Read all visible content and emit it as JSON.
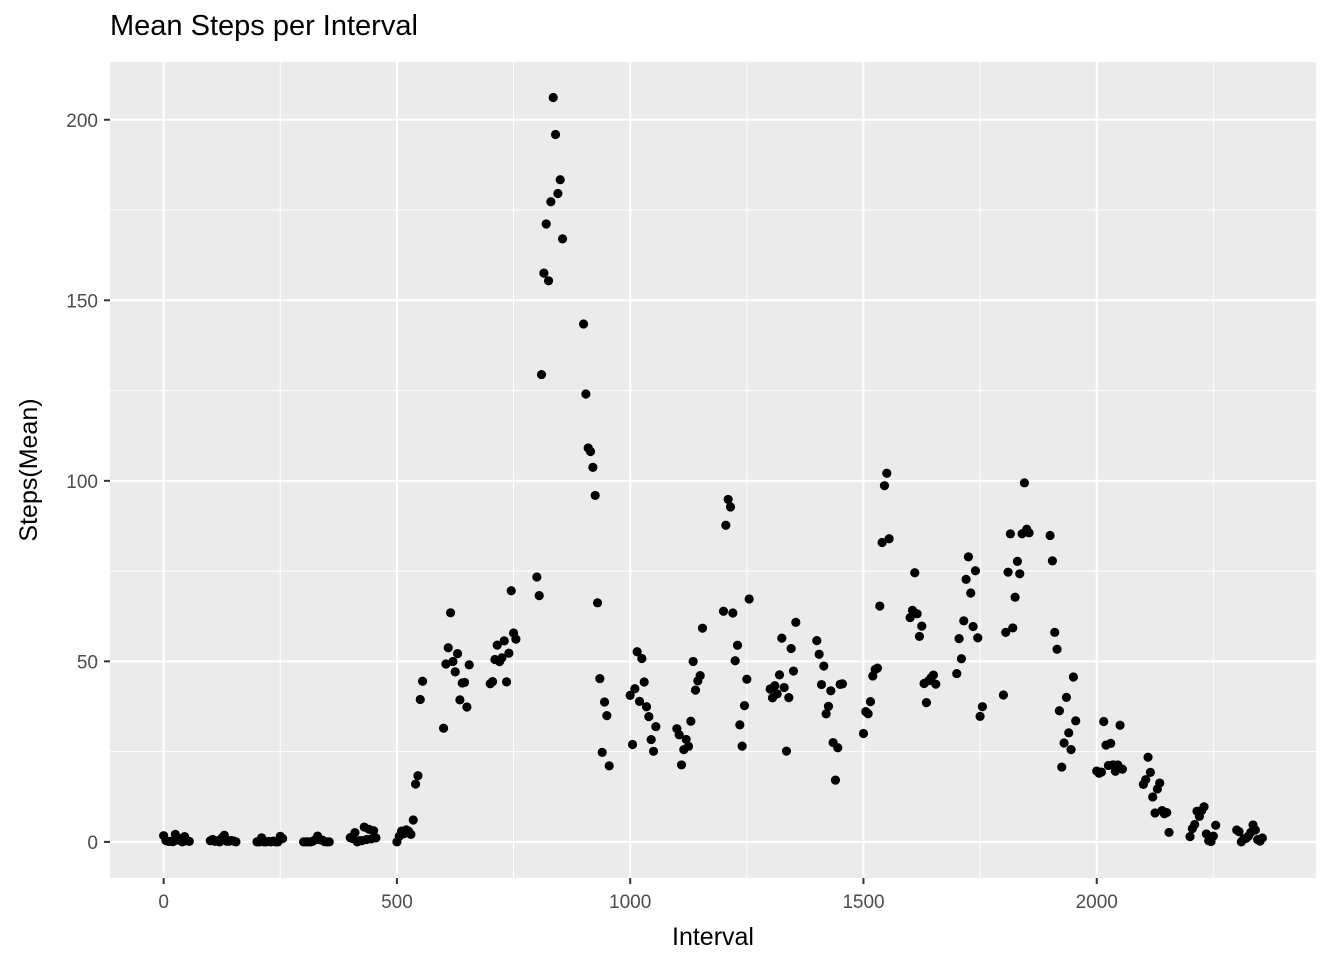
{
  "chart_data": {
    "type": "scatter",
    "title": "Mean Steps per Interval",
    "xlabel": "Interval",
    "ylabel": "Steps(Mean)",
    "xlim": [
      -115,
      2470
    ],
    "ylim": [
      -10,
      216
    ],
    "x_ticks": [
      0,
      500,
      1000,
      1500,
      2000
    ],
    "y_ticks": [
      0,
      50,
      100,
      150,
      200
    ],
    "x_tick_labels": [
      "0",
      "500",
      "1000",
      "1500",
      "2000"
    ],
    "y_tick_labels": [
      "0",
      "50",
      "100",
      "150",
      "200"
    ],
    "grid": true,
    "colors": {
      "panel": "#ebebeb",
      "grid": "#ffffff",
      "point": "#000000"
    },
    "points": [
      [
        0,
        1.72
      ],
      [
        5,
        0.34
      ],
      [
        10,
        0.13
      ],
      [
        15,
        0.15
      ],
      [
        20,
        0.08
      ],
      [
        25,
        2.09
      ],
      [
        30,
        0.53
      ],
      [
        35,
        0.87
      ],
      [
        40,
        0
      ],
      [
        45,
        1.47
      ],
      [
        50,
        0.3
      ],
      [
        55,
        0.13
      ],
      [
        100,
        0.32
      ],
      [
        105,
        0.68
      ],
      [
        110,
        0.15
      ],
      [
        115,
        0.34
      ],
      [
        120,
        0
      ],
      [
        125,
        1.11
      ],
      [
        130,
        1.83
      ],
      [
        135,
        0.17
      ],
      [
        140,
        0.17
      ],
      [
        145,
        0.38
      ],
      [
        150,
        0.26
      ],
      [
        155,
        0
      ],
      [
        200,
        0
      ],
      [
        205,
        0
      ],
      [
        210,
        1.13
      ],
      [
        215,
        0
      ],
      [
        220,
        0
      ],
      [
        225,
        0.13
      ],
      [
        230,
        0
      ],
      [
        235,
        0.23
      ],
      [
        240,
        0
      ],
      [
        245,
        0
      ],
      [
        250,
        1.55
      ],
      [
        255,
        0.94
      ],
      [
        300,
        0
      ],
      [
        305,
        0
      ],
      [
        310,
        0
      ],
      [
        315,
        0
      ],
      [
        320,
        0.21
      ],
      [
        325,
        0.62
      ],
      [
        330,
        1.62
      ],
      [
        335,
        0.59
      ],
      [
        340,
        0.49
      ],
      [
        345,
        0.08
      ],
      [
        350,
        0
      ],
      [
        355,
        0
      ],
      [
        400,
        1.19
      ],
      [
        405,
        0.94
      ],
      [
        410,
        2.57
      ],
      [
        415,
        0
      ],
      [
        420,
        0.34
      ],
      [
        425,
        0.36
      ],
      [
        430,
        4.11
      ],
      [
        435,
        0.66
      ],
      [
        440,
        3.49
      ],
      [
        445,
        0.83
      ],
      [
        450,
        3.11
      ],
      [
        455,
        1.11
      ],
      [
        500,
        0
      ],
      [
        505,
        1.57
      ],
      [
        510,
        3.0
      ],
      [
        515,
        2.25
      ],
      [
        520,
        3.32
      ],
      [
        525,
        2.96
      ],
      [
        530,
        2.09
      ],
      [
        535,
        6.06
      ],
      [
        540,
        16.02
      ],
      [
        545,
        18.34
      ],
      [
        550,
        39.45
      ],
      [
        555,
        44.49
      ],
      [
        600,
        31.49
      ],
      [
        605,
        49.26
      ],
      [
        610,
        53.77
      ],
      [
        615,
        63.45
      ],
      [
        620,
        49.96
      ],
      [
        625,
        47.08
      ],
      [
        630,
        52.15
      ],
      [
        635,
        39.34
      ],
      [
        640,
        44.02
      ],
      [
        645,
        44.17
      ],
      [
        650,
        37.36
      ],
      [
        655,
        49.04
      ],
      [
        700,
        43.81
      ],
      [
        705,
        44.38
      ],
      [
        710,
        50.51
      ],
      [
        715,
        54.51
      ],
      [
        720,
        49.92
      ],
      [
        725,
        50.98
      ],
      [
        730,
        55.68
      ],
      [
        735,
        44.32
      ],
      [
        740,
        52.26
      ],
      [
        745,
        69.55
      ],
      [
        750,
        57.85
      ],
      [
        755,
        56.15
      ],
      [
        800,
        73.38
      ],
      [
        805,
        68.21
      ],
      [
        810,
        129.43
      ],
      [
        815,
        157.53
      ],
      [
        820,
        171.15
      ],
      [
        825,
        155.4
      ],
      [
        830,
        177.3
      ],
      [
        835,
        206.17
      ],
      [
        840,
        195.92
      ],
      [
        845,
        179.57
      ],
      [
        850,
        183.4
      ],
      [
        855,
        167.02
      ],
      [
        900,
        143.45
      ],
      [
        905,
        124.04
      ],
      [
        910,
        109.11
      ],
      [
        915,
        108.11
      ],
      [
        920,
        103.72
      ],
      [
        925,
        95.96
      ],
      [
        930,
        66.21
      ],
      [
        935,
        45.23
      ],
      [
        940,
        24.79
      ],
      [
        945,
        38.75
      ],
      [
        950,
        34.98
      ],
      [
        955,
        21.06
      ],
      [
        1000,
        40.57
      ],
      [
        1005,
        26.98
      ],
      [
        1010,
        42.42
      ],
      [
        1015,
        52.66
      ],
      [
        1020,
        38.92
      ],
      [
        1025,
        50.79
      ],
      [
        1030,
        44.28
      ],
      [
        1035,
        37.42
      ],
      [
        1040,
        34.7
      ],
      [
        1045,
        28.34
      ],
      [
        1050,
        25.09
      ],
      [
        1055,
        31.94
      ],
      [
        1100,
        31.36
      ],
      [
        1105,
        29.68
      ],
      [
        1110,
        21.32
      ],
      [
        1115,
        25.55
      ],
      [
        1120,
        28.38
      ],
      [
        1125,
        26.47
      ],
      [
        1130,
        33.43
      ],
      [
        1135,
        49.98
      ],
      [
        1140,
        42.04
      ],
      [
        1145,
        44.6
      ],
      [
        1150,
        46.04
      ],
      [
        1155,
        59.19
      ],
      [
        1200,
        63.87
      ],
      [
        1205,
        87.7
      ],
      [
        1210,
        94.85
      ],
      [
        1215,
        92.77
      ],
      [
        1220,
        63.4
      ],
      [
        1225,
        50.17
      ],
      [
        1230,
        54.47
      ],
      [
        1235,
        32.42
      ],
      [
        1240,
        26.53
      ],
      [
        1245,
        37.74
      ],
      [
        1250,
        45.06
      ],
      [
        1255,
        67.28
      ],
      [
        1300,
        42.34
      ],
      [
        1305,
        39.89
      ],
      [
        1310,
        43.26
      ],
      [
        1315,
        40.98
      ],
      [
        1320,
        46.25
      ],
      [
        1325,
        56.43
      ],
      [
        1330,
        42.75
      ],
      [
        1335,
        25.13
      ],
      [
        1340,
        39.96
      ],
      [
        1345,
        53.55
      ],
      [
        1350,
        47.32
      ],
      [
        1355,
        60.81
      ],
      [
        1400,
        55.75
      ],
      [
        1405,
        51.96
      ],
      [
        1410,
        43.58
      ],
      [
        1415,
        48.7
      ],
      [
        1420,
        35.47
      ],
      [
        1425,
        37.55
      ],
      [
        1430,
        41.85
      ],
      [
        1435,
        27.51
      ],
      [
        1440,
        17.11
      ],
      [
        1445,
        26.08
      ],
      [
        1450,
        43.62
      ],
      [
        1455,
        43.77
      ],
      [
        1500,
        30.02
      ],
      [
        1505,
        36.08
      ],
      [
        1510,
        35.49
      ],
      [
        1515,
        38.85
      ],
      [
        1520,
        45.96
      ],
      [
        1525,
        47.75
      ],
      [
        1530,
        48.13
      ],
      [
        1535,
        65.32
      ],
      [
        1540,
        82.91
      ],
      [
        1545,
        98.66
      ],
      [
        1550,
        102.11
      ],
      [
        1555,
        83.96
      ],
      [
        1600,
        62.13
      ],
      [
        1605,
        64.13
      ],
      [
        1610,
        74.55
      ],
      [
        1615,
        63.17
      ],
      [
        1620,
        56.91
      ],
      [
        1625,
        59.77
      ],
      [
        1630,
        43.87
      ],
      [
        1635,
        38.57
      ],
      [
        1640,
        44.66
      ],
      [
        1645,
        45.45
      ],
      [
        1650,
        46.21
      ],
      [
        1655,
        43.68
      ],
      [
        1700,
        46.62
      ],
      [
        1705,
        56.3
      ],
      [
        1710,
        50.72
      ],
      [
        1715,
        61.23
      ],
      [
        1720,
        72.72
      ],
      [
        1725,
        78.94
      ],
      [
        1730,
        68.94
      ],
      [
        1735,
        59.66
      ],
      [
        1740,
        75.09
      ],
      [
        1745,
        56.51
      ],
      [
        1750,
        34.77
      ],
      [
        1755,
        37.45
      ],
      [
        1800,
        40.68
      ],
      [
        1805,
        58.02
      ],
      [
        1810,
        74.7
      ],
      [
        1815,
        85.32
      ],
      [
        1820,
        59.26
      ],
      [
        1825,
        67.77
      ],
      [
        1830,
        77.7
      ],
      [
        1835,
        74.25
      ],
      [
        1840,
        85.34
      ],
      [
        1845,
        99.45
      ],
      [
        1850,
        86.58
      ],
      [
        1855,
        85.6
      ],
      [
        1900,
        84.87
      ],
      [
        1905,
        77.83
      ],
      [
        1910,
        58.04
      ],
      [
        1915,
        53.36
      ],
      [
        1920,
        36.32
      ],
      [
        1925,
        20.72
      ],
      [
        1930,
        27.4
      ],
      [
        1935,
        40.02
      ],
      [
        1940,
        30.21
      ],
      [
        1945,
        25.55
      ],
      [
        1950,
        45.66
      ],
      [
        1955,
        33.53
      ],
      [
        2000,
        19.62
      ],
      [
        2005,
        19.02
      ],
      [
        2010,
        19.34
      ],
      [
        2015,
        33.34
      ],
      [
        2020,
        26.81
      ],
      [
        2025,
        21.17
      ],
      [
        2030,
        27.3
      ],
      [
        2035,
        21.34
      ],
      [
        2040,
        19.55
      ],
      [
        2045,
        21.32
      ],
      [
        2050,
        32.3
      ],
      [
        2055,
        20.15
      ],
      [
        2100,
        15.94
      ],
      [
        2105,
        17.23
      ],
      [
        2110,
        23.45
      ],
      [
        2115,
        19.25
      ],
      [
        2120,
        12.45
      ],
      [
        2125,
        8.02
      ],
      [
        2130,
        14.66
      ],
      [
        2135,
        16.3
      ],
      [
        2140,
        8.68
      ],
      [
        2145,
        7.79
      ],
      [
        2150,
        8.13
      ],
      [
        2155,
        2.62
      ],
      [
        2200,
        1.45
      ],
      [
        2205,
        3.68
      ],
      [
        2210,
        4.81
      ],
      [
        2215,
        8.51
      ],
      [
        2220,
        7.08
      ],
      [
        2225,
        8.7
      ],
      [
        2230,
        9.75
      ],
      [
        2235,
        2.21
      ],
      [
        2240,
        0.32
      ],
      [
        2245,
        0.11
      ],
      [
        2250,
        1.6
      ],
      [
        2255,
        4.6
      ],
      [
        2300,
        3.3
      ],
      [
        2305,
        2.85
      ],
      [
        2310,
        0
      ],
      [
        2315,
        0.83
      ],
      [
        2320,
        0.96
      ],
      [
        2325,
        1.58
      ],
      [
        2330,
        2.6
      ],
      [
        2335,
        4.7
      ],
      [
        2340,
        3.3
      ],
      [
        2345,
        0.64
      ],
      [
        2350,
        0.23
      ],
      [
        2355,
        1.08
      ]
    ]
  }
}
